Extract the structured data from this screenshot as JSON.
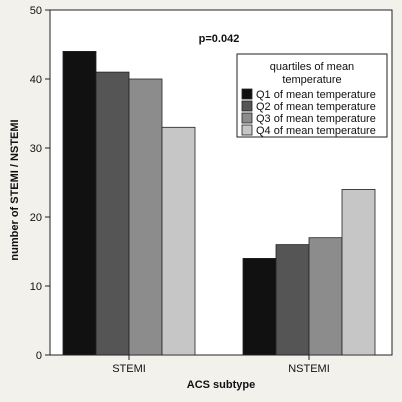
{
  "chart_data": {
    "type": "bar",
    "categories": [
      "STEMI",
      "NSTEMI"
    ],
    "series": [
      {
        "name": "Q1 of mean temperature",
        "values": [
          44,
          14
        ],
        "color": "#111111"
      },
      {
        "name": "Q2 of mean temperature",
        "values": [
          41,
          16
        ],
        "color": "#555555"
      },
      {
        "name": "Q3 of mean temperature",
        "values": [
          40,
          17
        ],
        "color": "#8c8c8c"
      },
      {
        "name": "Q4 of mean temperature",
        "values": [
          33,
          24
        ],
        "color": "#c6c6c6"
      }
    ],
    "xlabel": "ACS subtype",
    "ylabel": "number of STEMI / NSTEMI",
    "ylim": [
      0,
      50
    ],
    "yticks": [
      0,
      10,
      20,
      30,
      40,
      50
    ],
    "legend_title_line1": "quartiles of mean",
    "legend_title_line2": "temperature",
    "legend_position": "top-right",
    "annotation": "p=0.042",
    "grid": false
  }
}
